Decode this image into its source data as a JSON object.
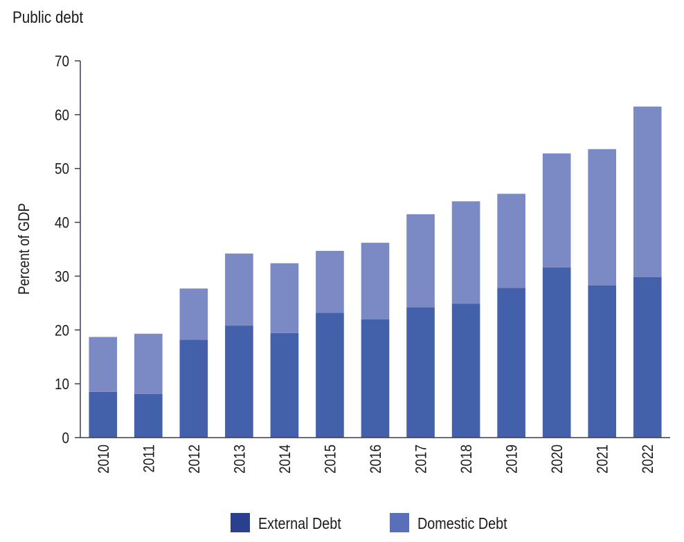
{
  "chart_data": {
    "type": "bar",
    "stacked": true,
    "title": "Public debt",
    "ylabel": "Percent of GDP",
    "xlabel": "",
    "ylim": [
      0,
      70
    ],
    "yticks": [
      0,
      10,
      20,
      30,
      40,
      50,
      60,
      70
    ],
    "grid": false,
    "legend_position": "bottom",
    "categories": [
      "2010",
      "2011",
      "2012",
      "2013",
      "2014",
      "2015",
      "2016",
      "2017",
      "2018",
      "2019",
      "2020",
      "2021",
      "2022"
    ],
    "series": [
      {
        "name": "External Debt",
        "color": "#4361aa",
        "legend_color": "#2b3f8f",
        "values": [
          8.5,
          8.1,
          18.2,
          20.8,
          19.4,
          23.2,
          22.0,
          24.2,
          24.9,
          27.8,
          31.6,
          28.3,
          29.8
        ]
      },
      {
        "name": "Domestic Debt",
        "color": "#7b89c4",
        "legend_color": "#5a6fba",
        "values": [
          10.2,
          11.2,
          9.5,
          13.4,
          13.0,
          11.5,
          14.2,
          17.3,
          19.0,
          17.5,
          21.2,
          25.3,
          31.7
        ]
      }
    ]
  }
}
